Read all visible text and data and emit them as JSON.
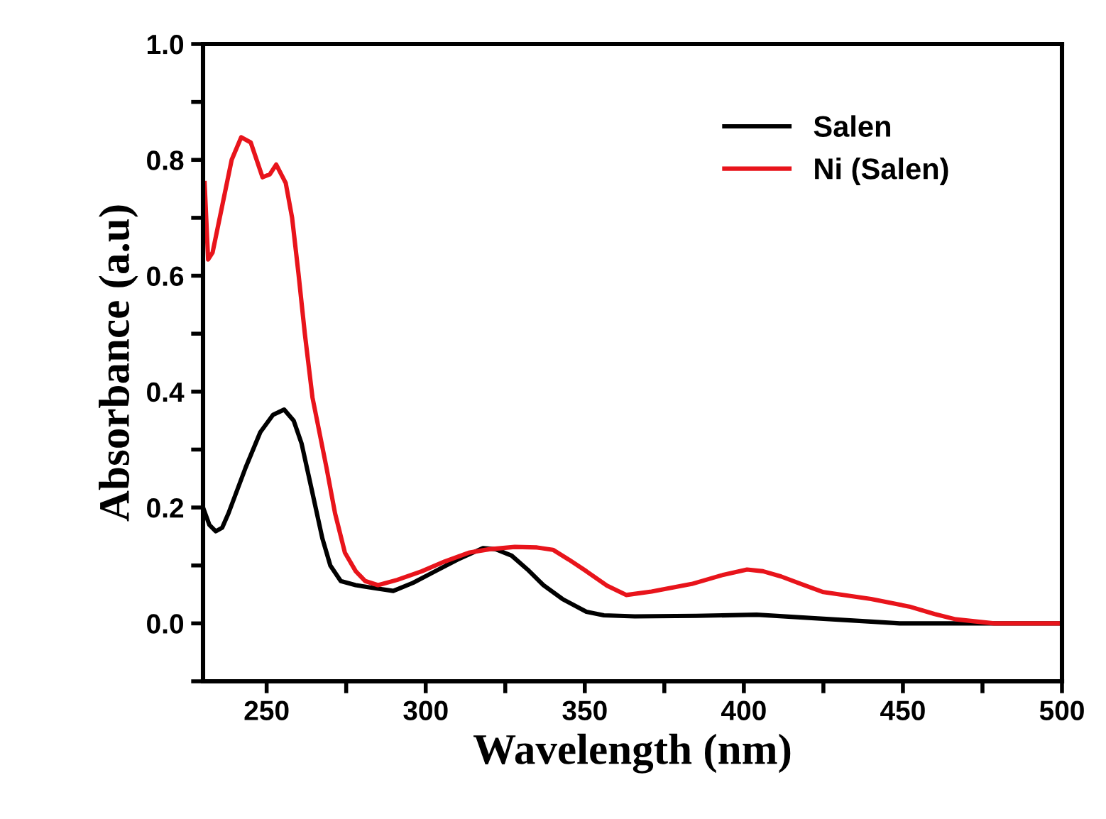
{
  "chart_data": {
    "type": "line",
    "xlabel": "Wavelength (nm)",
    "ylabel": "Absorbance (a.u)",
    "xlim": [
      230,
      500
    ],
    "ylim": [
      -0.1,
      1.0
    ],
    "xticks": [
      250,
      {
        "value": 275,
        "label": null
      },
      300,
      {
        "value": 325,
        "label": null
      },
      350,
      {
        "value": 375,
        "label": null
      },
      400,
      {
        "value": 425,
        "label": null
      },
      450,
      {
        "value": 475,
        "label": null
      },
      500
    ],
    "yticks": [
      {
        "value": -0.1,
        "label": null
      },
      {
        "value": 0,
        "label": "0.0"
      },
      {
        "value": 0.1,
        "label": null
      },
      0.2,
      {
        "value": 0.3,
        "label": null
      },
      0.4,
      {
        "value": 0.5,
        "label": null
      },
      0.6,
      {
        "value": 0.7,
        "label": null
      },
      0.8,
      {
        "value": 0.9,
        "label": null
      },
      {
        "value": 1,
        "label": "1.0"
      }
    ],
    "grid": false,
    "legend": "top right",
    "marker": "none",
    "line_style": "solid",
    "series": [
      {
        "name": "Salen",
        "color": "#000000",
        "x": [
          230,
          232,
          234,
          236,
          238,
          243.4,
          248,
          252,
          255.5,
          258.5,
          261,
          264,
          267.5,
          270,
          273.3,
          278,
          283.6,
          289.8,
          296,
          303,
          310,
          318,
          322,
          327,
          332,
          337,
          343,
          350.5,
          356,
          365.7,
          385,
          404,
          425,
          440,
          449,
          470,
          500
        ],
        "values": [
          0.2,
          0.17,
          0.159,
          0.165,
          0.19,
          0.269,
          0.33,
          0.36,
          0.369,
          0.35,
          0.31,
          0.235,
          0.147,
          0.1,
          0.073,
          0.066,
          0.061,
          0.056,
          0.07,
          0.09,
          0.11,
          0.13,
          0.128,
          0.117,
          0.093,
          0.066,
          0.042,
          0.02,
          0.014,
          0.012,
          0.013,
          0.015,
          0.008,
          0.003,
          0.0,
          0.0,
          0.0
        ]
      },
      {
        "name": "Ni (Salen)",
        "color": "#e8141b",
        "x": [
          230.5,
          231.6,
          233,
          236,
          239,
          242,
          245,
          248.7,
          251,
          253,
          256,
          258,
          260,
          262,
          264.4,
          268.8,
          271.5,
          274.6,
          278,
          281,
          285,
          291,
          298.8,
          306,
          313.5,
          320,
          328,
          335,
          340,
          345,
          350.5,
          357,
          363,
          371,
          383.6,
          393,
          401,
          406,
          411.7,
          418,
          425,
          440,
          452,
          460,
          466.6,
          478.7,
          500
        ],
        "values": [
          0.76,
          0.628,
          0.64,
          0.72,
          0.8,
          0.839,
          0.83,
          0.77,
          0.775,
          0.792,
          0.76,
          0.7,
          0.604,
          0.5,
          0.39,
          0.269,
          0.19,
          0.122,
          0.09,
          0.073,
          0.066,
          0.075,
          0.09,
          0.107,
          0.122,
          0.128,
          0.132,
          0.131,
          0.127,
          0.11,
          0.09,
          0.065,
          0.049,
          0.055,
          0.068,
          0.083,
          0.093,
          0.09,
          0.081,
          0.068,
          0.054,
          0.042,
          0.029,
          0.016,
          0.007,
          0.0,
          0.0
        ]
      }
    ]
  }
}
